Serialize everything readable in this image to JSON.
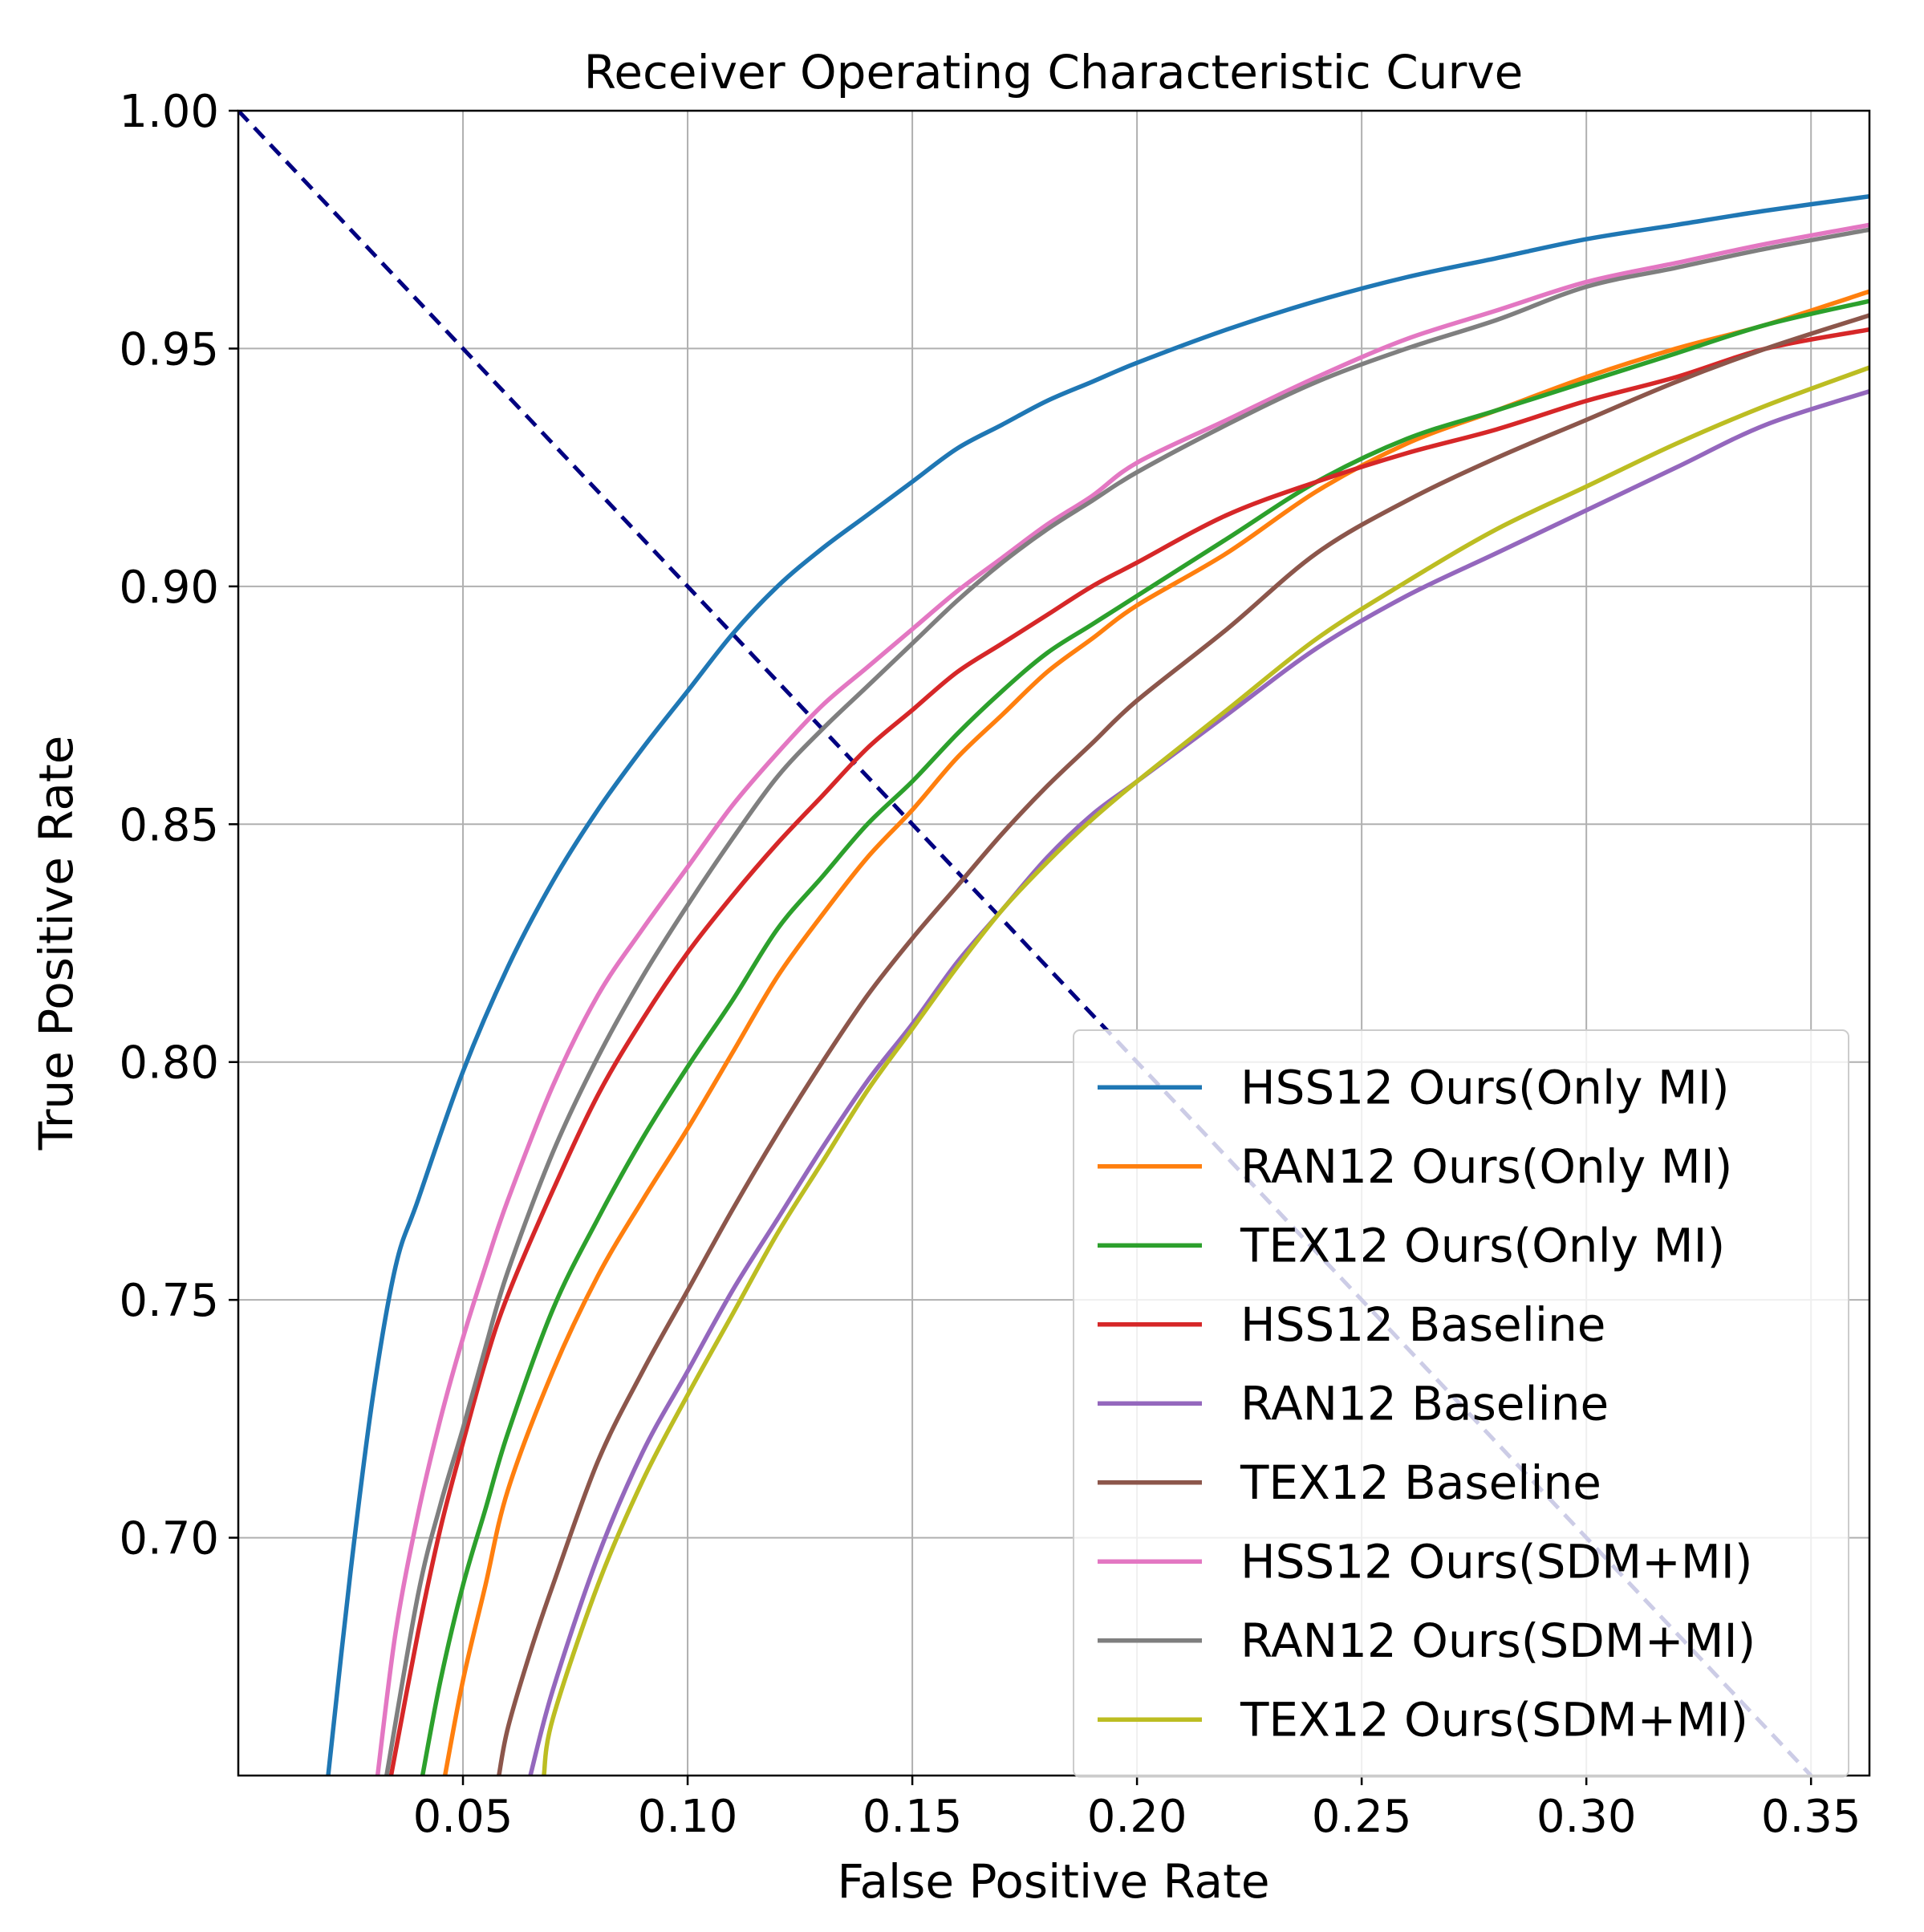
{
  "chart_data": {
    "type": "line",
    "title": "Receiver Operating Characteristic Curve",
    "xlabel": "False Positive Rate",
    "ylabel": "True Positive Rate",
    "xlim": [
      0.0,
      0.363
    ],
    "ylim": [
      0.65,
      1.0
    ],
    "grid": true,
    "legend_position": "lower-right",
    "x_ticks": [
      0.05,
      0.1,
      0.15,
      0.2,
      0.25,
      0.3,
      0.35
    ],
    "x_tick_labels": [
      "0.05",
      "0.10",
      "0.15",
      "0.20",
      "0.25",
      "0.30",
      "0.35"
    ],
    "y_ticks": [
      0.7,
      0.75,
      0.8,
      0.85,
      0.9,
      0.95,
      1.0
    ],
    "y_tick_labels": [
      "0.70",
      "0.75",
      "0.80",
      "0.85",
      "0.90",
      "0.95",
      "1.00"
    ],
    "reference_line": {
      "name": "diagonal-reference",
      "style": "dashed",
      "color": "#000080",
      "x": [
        0.0,
        0.35
      ],
      "y": [
        1.0,
        0.65
      ]
    },
    "series": [
      {
        "name": "HSS12 Ours(Only MI)",
        "color": "#1f77b4",
        "x": [
          0.02,
          0.025,
          0.03,
          0.035,
          0.04,
          0.05,
          0.06,
          0.07,
          0.08,
          0.09,
          0.1,
          0.11,
          0.12,
          0.13,
          0.14,
          0.15,
          0.16,
          0.17,
          0.18,
          0.19,
          0.2,
          0.22,
          0.24,
          0.26,
          0.28,
          0.3,
          0.32,
          0.34,
          0.363
        ],
        "y": [
          0.65,
          0.693,
          0.73,
          0.757,
          0.771,
          0.798,
          0.82,
          0.838,
          0.853,
          0.866,
          0.878,
          0.89,
          0.9,
          0.908,
          0.915,
          0.922,
          0.929,
          0.934,
          0.939,
          0.943,
          0.947,
          0.954,
          0.96,
          0.965,
          0.969,
          0.973,
          0.976,
          0.979,
          0.982
        ]
      },
      {
        "name": "RAN12 Ours(Only MI)",
        "color": "#ff7f0e",
        "x": [
          0.046,
          0.05,
          0.055,
          0.06,
          0.07,
          0.08,
          0.09,
          0.1,
          0.11,
          0.12,
          0.13,
          0.14,
          0.15,
          0.16,
          0.17,
          0.18,
          0.19,
          0.2,
          0.22,
          0.24,
          0.26,
          0.28,
          0.3,
          0.32,
          0.34,
          0.363
        ],
        "y": [
          0.65,
          0.67,
          0.69,
          0.71,
          0.735,
          0.755,
          0.771,
          0.786,
          0.802,
          0.818,
          0.831,
          0.843,
          0.853,
          0.864,
          0.873,
          0.882,
          0.889,
          0.896,
          0.907,
          0.92,
          0.93,
          0.937,
          0.944,
          0.95,
          0.955,
          0.962
        ]
      },
      {
        "name": "TEX12 Ours(Only MI)",
        "color": "#2ca02c",
        "x": [
          0.041,
          0.045,
          0.05,
          0.055,
          0.06,
          0.07,
          0.08,
          0.09,
          0.1,
          0.11,
          0.12,
          0.13,
          0.14,
          0.15,
          0.16,
          0.17,
          0.18,
          0.19,
          0.2,
          0.22,
          0.24,
          0.26,
          0.28,
          0.3,
          0.32,
          0.34,
          0.363
        ],
        "y": [
          0.65,
          0.67,
          0.69,
          0.706,
          0.722,
          0.748,
          0.767,
          0.784,
          0.799,
          0.813,
          0.828,
          0.839,
          0.85,
          0.859,
          0.869,
          0.878,
          0.886,
          0.892,
          0.898,
          0.91,
          0.922,
          0.931,
          0.937,
          0.943,
          0.949,
          0.955,
          0.96
        ]
      },
      {
        "name": "HSS12 Baseline",
        "color": "#d62728",
        "x": [
          0.034,
          0.04,
          0.045,
          0.05,
          0.055,
          0.06,
          0.07,
          0.08,
          0.09,
          0.1,
          0.11,
          0.12,
          0.13,
          0.14,
          0.15,
          0.16,
          0.17,
          0.18,
          0.19,
          0.2,
          0.22,
          0.24,
          0.26,
          0.28,
          0.3,
          0.32,
          0.34,
          0.363
        ],
        "y": [
          0.65,
          0.68,
          0.702,
          0.72,
          0.737,
          0.751,
          0.773,
          0.793,
          0.809,
          0.823,
          0.835,
          0.846,
          0.856,
          0.866,
          0.874,
          0.882,
          0.888,
          0.894,
          0.9,
          0.905,
          0.915,
          0.922,
          0.928,
          0.933,
          0.939,
          0.944,
          0.95,
          0.954
        ]
      },
      {
        "name": "RAN12 Baseline",
        "color": "#9467bd",
        "x": [
          0.065,
          0.07,
          0.08,
          0.09,
          0.1,
          0.11,
          0.12,
          0.13,
          0.14,
          0.15,
          0.16,
          0.17,
          0.18,
          0.19,
          0.2,
          0.22,
          0.24,
          0.26,
          0.28,
          0.3,
          0.32,
          0.34,
          0.363
        ],
        "y": [
          0.65,
          0.668,
          0.696,
          0.718,
          0.735,
          0.752,
          0.767,
          0.782,
          0.796,
          0.808,
          0.821,
          0.832,
          0.843,
          0.852,
          0.859,
          0.873,
          0.887,
          0.898,
          0.907,
          0.916,
          0.925,
          0.934,
          0.941
        ]
      },
      {
        "name": "TEX12 Baseline",
        "color": "#8c564b",
        "x": [
          0.058,
          0.06,
          0.065,
          0.07,
          0.08,
          0.09,
          0.1,
          0.11,
          0.12,
          0.13,
          0.14,
          0.15,
          0.16,
          0.17,
          0.18,
          0.19,
          0.2,
          0.22,
          0.24,
          0.26,
          0.28,
          0.3,
          0.32,
          0.34,
          0.363
        ],
        "y": [
          0.65,
          0.66,
          0.676,
          0.69,
          0.716,
          0.735,
          0.752,
          0.769,
          0.785,
          0.8,
          0.814,
          0.826,
          0.837,
          0.848,
          0.858,
          0.867,
          0.876,
          0.891,
          0.907,
          0.918,
          0.927,
          0.935,
          0.943,
          0.95,
          0.957
        ]
      },
      {
        "name": "HSS12 Ours(SDM+MI)",
        "color": "#e377c2",
        "x": [
          0.031,
          0.035,
          0.04,
          0.045,
          0.05,
          0.055,
          0.06,
          0.07,
          0.08,
          0.09,
          0.1,
          0.11,
          0.12,
          0.13,
          0.14,
          0.15,
          0.16,
          0.17,
          0.18,
          0.19,
          0.2,
          0.22,
          0.24,
          0.26,
          0.28,
          0.3,
          0.32,
          0.34,
          0.363
        ],
        "y": [
          0.65,
          0.68,
          0.705,
          0.725,
          0.742,
          0.757,
          0.771,
          0.795,
          0.814,
          0.828,
          0.841,
          0.854,
          0.865,
          0.875,
          0.883,
          0.891,
          0.899,
          0.906,
          0.913,
          0.919,
          0.926,
          0.935,
          0.944,
          0.952,
          0.958,
          0.964,
          0.968,
          0.972,
          0.976
        ]
      },
      {
        "name": "RAN12 Ours(SDM+MI)",
        "color": "#7f7f7f",
        "x": [
          0.033,
          0.04,
          0.045,
          0.05,
          0.055,
          0.06,
          0.07,
          0.08,
          0.09,
          0.1,
          0.11,
          0.12,
          0.13,
          0.14,
          0.15,
          0.16,
          0.17,
          0.18,
          0.19,
          0.2,
          0.22,
          0.24,
          0.26,
          0.28,
          0.3,
          0.32,
          0.34,
          0.363
        ],
        "y": [
          0.65,
          0.688,
          0.707,
          0.723,
          0.74,
          0.756,
          0.781,
          0.801,
          0.818,
          0.833,
          0.847,
          0.86,
          0.87,
          0.879,
          0.888,
          0.897,
          0.905,
          0.912,
          0.918,
          0.924,
          0.934,
          0.943,
          0.95,
          0.956,
          0.963,
          0.967,
          0.971,
          0.975
        ]
      },
      {
        "name": "TEX12 Ours(SDM+MI)",
        "color": "#bcbd22",
        "x": [
          0.068,
          0.07,
          0.08,
          0.09,
          0.1,
          0.11,
          0.12,
          0.13,
          0.14,
          0.15,
          0.16,
          0.17,
          0.18,
          0.19,
          0.2,
          0.22,
          0.24,
          0.26,
          0.28,
          0.3,
          0.32,
          0.34,
          0.363
        ],
        "y": [
          0.65,
          0.662,
          0.69,
          0.712,
          0.73,
          0.747,
          0.764,
          0.779,
          0.794,
          0.807,
          0.82,
          0.832,
          0.842,
          0.851,
          0.859,
          0.874,
          0.889,
          0.901,
          0.912,
          0.921,
          0.93,
          0.938,
          0.946
        ]
      }
    ]
  }
}
